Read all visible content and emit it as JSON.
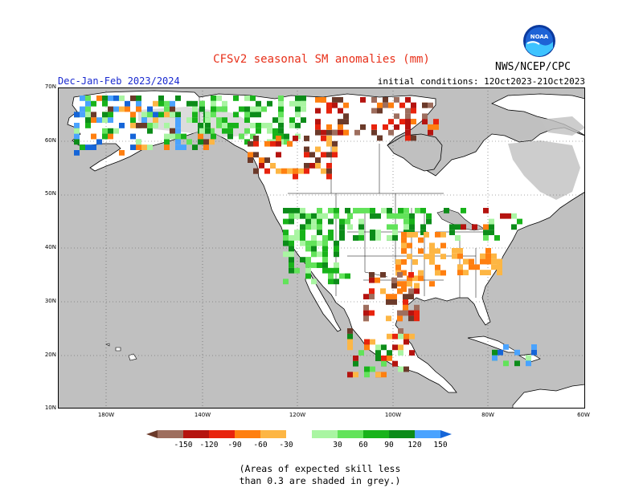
{
  "header": {
    "title": "CFSv2 seasonal SM anomalies (mm)",
    "season": "Dec-Jan-Feb 2023/2024",
    "initial_conditions": "initial conditions: 12Oct2023-21Oct2023",
    "agency": "NWS/NCEP/CPC",
    "logo_text": "NOAA"
  },
  "map": {
    "region": "North America",
    "lat_labels": [
      "70N",
      "60N",
      "50N",
      "40N",
      "30N",
      "20N",
      "10N"
    ],
    "lon_labels": [
      "180W",
      "140W",
      "120W",
      "100W",
      "80W",
      "60W"
    ],
    "colors": {
      "ocean": "#c0c0c0",
      "land_no_signal": "#ffffff",
      "low_skill": "#c0c0c0",
      "border": "#000000"
    }
  },
  "legend": {
    "tick_labels": [
      "-150",
      "-120",
      "-90",
      "-60",
      "-30",
      "30",
      "60",
      "90",
      "120",
      "150"
    ],
    "colors": [
      "#6b3a2a",
      "#9e6e5e",
      "#b5130f",
      "#e8230d",
      "#ff7f10",
      "#fdb644",
      "#ffffff",
      "#a9f5a2",
      "#62e35a",
      "#18b31a",
      "#0c8c19",
      "#4aa3ff",
      "#1565d8"
    ]
  },
  "footnote": {
    "line1": "(Areas of expected skill less",
    "line2": "than 0.3 are shaded in grey.)"
  }
}
